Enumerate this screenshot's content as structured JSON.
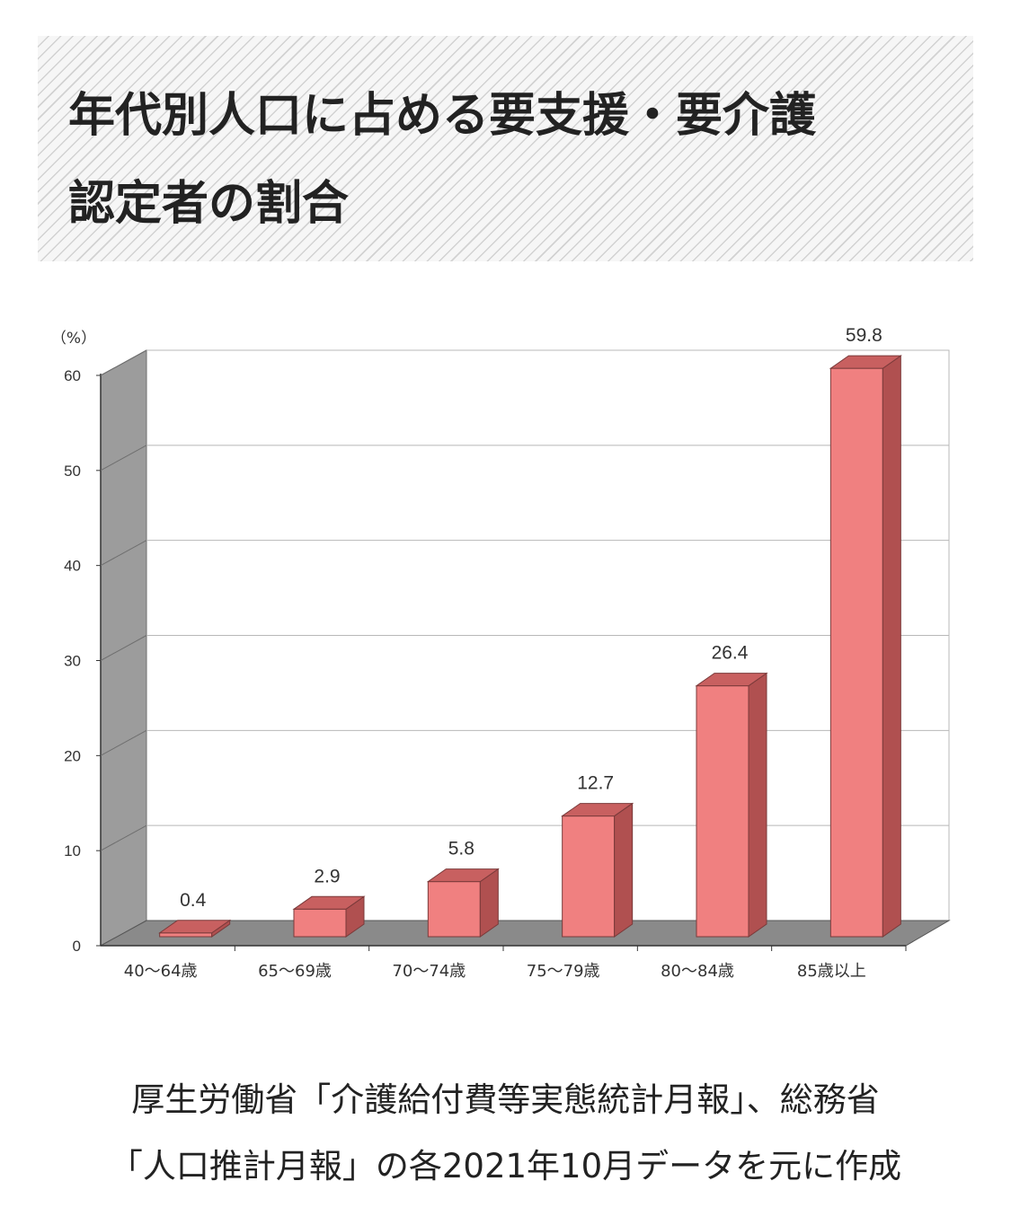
{
  "title": {
    "line1": "年代別人口に占める要支援・要介護",
    "line2": "認定者の割合"
  },
  "chart_data": {
    "type": "bar",
    "unit_label": "（%）",
    "categories": [
      "40～64歳",
      "65～69歳",
      "70～74歳",
      "75～79歳",
      "80～84歳",
      "85歳以上"
    ],
    "values": [
      0.4,
      2.9,
      5.8,
      12.7,
      26.4,
      59.8
    ],
    "value_labels": [
      "0.4",
      "2.9",
      "5.8",
      "12.7",
      "26.4",
      "59.8"
    ],
    "y_ticks": [
      "0",
      "10",
      "20",
      "30",
      "40",
      "50",
      "60"
    ],
    "ylim": [
      0,
      60
    ],
    "grid": true,
    "bar_color": "#f08080",
    "bar_side_color": "#b05050",
    "bar_top_color": "#c86060"
  },
  "source": {
    "line1": "厚生労働省「介護給付費等実態統計月報」、総務省",
    "line2": "「人口推計月報」の各2021年10月データを元に作成"
  }
}
